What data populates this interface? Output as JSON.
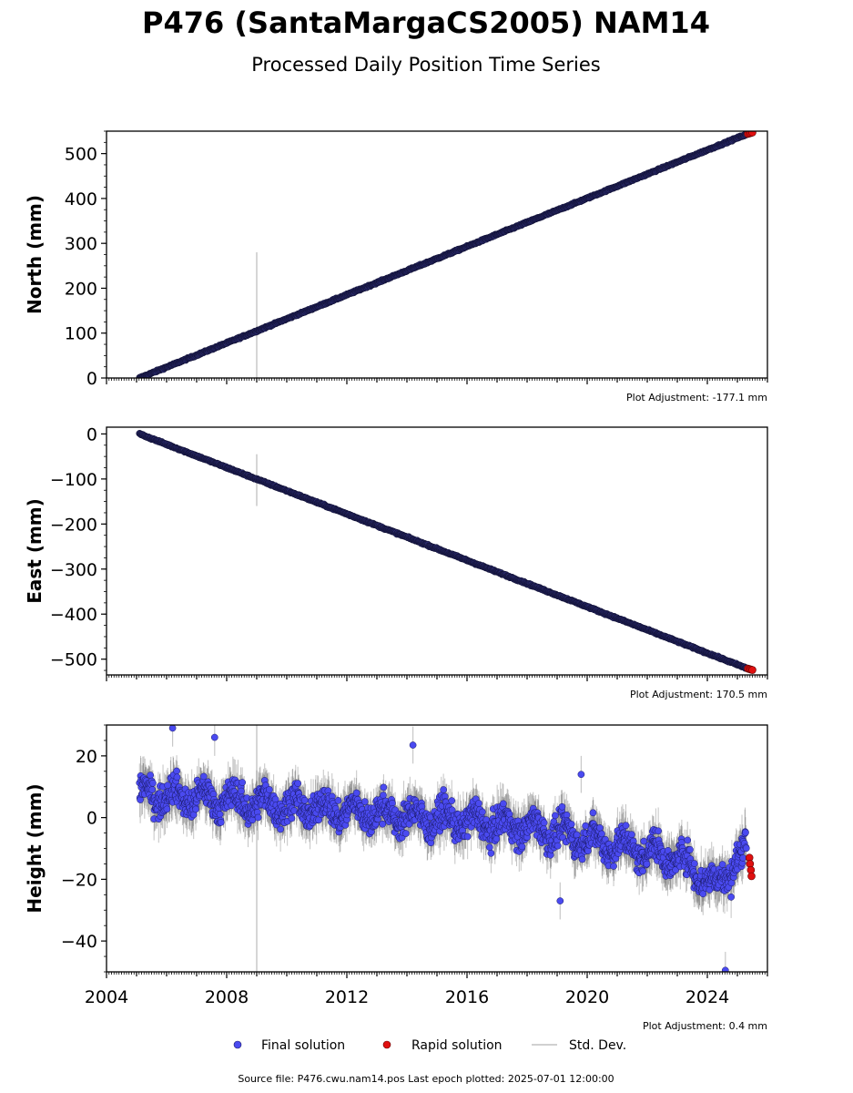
{
  "title": "P476 (SantaMargaCS2005) NAM14",
  "subtitle": "Processed Daily Position Time Series",
  "legend": {
    "final": "Final solution",
    "rapid": "Rapid solution",
    "stddev": "Std. Dev."
  },
  "source_note": "Source file: P476.cwu.nam14.pos  Last epoch plotted: 2025-07-01 12:00:00",
  "colors": {
    "final": "#4a4af0",
    "final_edge": "#1a1a66",
    "rapid": "#e01010",
    "stddev": "#b0b0b0"
  },
  "chart_data": [
    {
      "type": "scatter",
      "ylabel": "North (mm)",
      "adjustment": "Plot Adjustment: -177.1 mm",
      "xlim": [
        2004,
        2026
      ],
      "ylim": [
        0,
        550
      ],
      "yticks": [
        0,
        100,
        200,
        300,
        400,
        500
      ],
      "ytick_labels": [
        "0",
        "100",
        "200",
        "300",
        "400",
        "500"
      ],
      "series": [
        {
          "name": "Final solution",
          "trend": {
            "x": [
              2005.1,
              2025.3
            ],
            "y": [
              0,
              543
            ]
          }
        },
        {
          "name": "Rapid solution",
          "points": {
            "x": [
              2025.35,
              2025.4,
              2025.45,
              2025.5
            ],
            "y": [
              544,
              545,
              546,
              547
            ]
          }
        }
      ],
      "outlier_bar": {
        "x": 2009.0,
        "y": [
          0,
          280
        ]
      }
    },
    {
      "type": "scatter",
      "ylabel": "East (mm)",
      "adjustment": "Plot Adjustment: 170.5 mm",
      "xlim": [
        2004,
        2026
      ],
      "ylim": [
        -535,
        15
      ],
      "yticks": [
        0,
        -100,
        -200,
        -300,
        -400,
        -500
      ],
      "ytick_labels": [
        "0",
        "−100",
        "−200",
        "−300",
        "−400",
        "−500"
      ],
      "series": [
        {
          "name": "Final solution",
          "trend": {
            "x": [
              2005.1,
              2025.3
            ],
            "y": [
              0,
              -520
            ]
          }
        },
        {
          "name": "Rapid solution",
          "points": {
            "x": [
              2025.35,
              2025.4,
              2025.45,
              2025.5
            ],
            "y": [
              -521,
              -522,
              -523,
              -524
            ]
          }
        }
      ],
      "outlier_bar": {
        "x": 2009.0,
        "y": [
          -45,
          -160
        ]
      }
    },
    {
      "type": "scatter",
      "ylabel": "Height (mm)",
      "adjustment": "Plot Adjustment: 0.4 mm",
      "xlim": [
        2004,
        2026
      ],
      "ylim": [
        -50,
        30
      ],
      "yticks": [
        20,
        0,
        -20,
        -40
      ],
      "ytick_labels": [
        "20",
        "0",
        "−20",
        "−40"
      ],
      "xticks": [
        2004,
        2008,
        2012,
        2016,
        2020,
        2024
      ],
      "xtick_labels": [
        "2004",
        "2008",
        "2012",
        "2016",
        "2020",
        "2024"
      ],
      "series": [
        {
          "name": "Final solution",
          "trend": {
            "x": [
              2005.1,
              2011,
              2018,
              2023,
              2024.3,
              2025.3
            ],
            "y": [
              8,
              3,
              -3,
              -13,
              -22,
              -10
            ]
          }
        },
        {
          "name": "Rapid solution",
          "points": {
            "x": [
              2025.4,
              2025.42,
              2025.45,
              2025.47
            ],
            "y": [
              -13,
              -15,
              -17,
              -19
            ]
          }
        }
      ],
      "outliers": {
        "x": [
          2006.2,
          2007.6,
          2014.2,
          2019.1,
          2019.8,
          2024.6
        ],
        "y": [
          29,
          26,
          23.5,
          -27,
          14,
          -49.5
        ]
      },
      "outlier_bar": {
        "x": 2009.0,
        "y": [
          -50,
          30
        ]
      }
    }
  ]
}
